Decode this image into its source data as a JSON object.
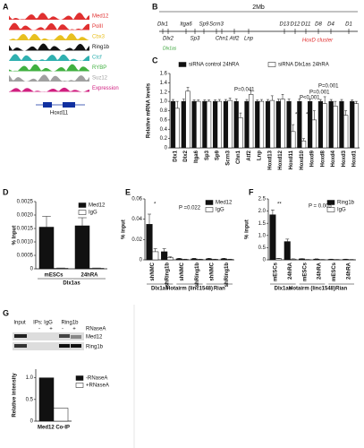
{
  "panel_a": {
    "panel": "A",
    "tracks": [
      {
        "name": "Med12",
        "color": "#e03030"
      },
      {
        "name": "PolII",
        "color": "#e03030"
      },
      {
        "name": "Cbx3",
        "color": "#e8c020"
      },
      {
        "name": "Ring1b",
        "color": "#111111"
      },
      {
        "name": "Ctcf",
        "color": "#30b0b0"
      },
      {
        "name": "RYBP",
        "color": "#40b040"
      },
      {
        "name": "Suz12",
        "color": "#a0a0a0"
      },
      {
        "name": "Expression",
        "color": "#d02080"
      }
    ],
    "gene": "Hoxd11"
  },
  "panel_b": {
    "panel": "B",
    "scale": "2Mb",
    "genes": [
      "Dlx1",
      "Dlx2",
      "Itga6",
      "Sp3",
      "Sp9",
      "Scrn3",
      "Chn1",
      "Atf2",
      "Lnp",
      "D13",
      "D12",
      "D11",
      "D8",
      "D4",
      "D1"
    ],
    "cluster": "HoxD cluster",
    "lncrna": "Dlx1as"
  },
  "panel_g_blot": {
    "headers": [
      "Input",
      "IPs: IgG",
      "Ring1b"
    ],
    "treatment": "RNaseA",
    "signs": [
      "-",
      "+",
      "-",
      "+"
    ],
    "bands": [
      "Med12",
      "Ring1b"
    ]
  },
  "chart_data": [
    {
      "panel": "C",
      "type": "bar",
      "ylabel": "Relative mRNA levels",
      "categories": [
        "Dlx1",
        "Dlx2",
        "Itga6",
        "Sp3",
        "Sp9",
        "Scrn3",
        "Chn1",
        "Atf2",
        "Lnp",
        "Hoxd13",
        "Hoxd12",
        "Hoxd11",
        "Hoxd10",
        "Hoxd9",
        "Hoxd8",
        "Hoxd4",
        "Hoxd3",
        "Hoxd1"
      ],
      "series": [
        {
          "name": "siRNA control 24hRA",
          "color": "#111111",
          "values": [
            1,
            1,
            1,
            1,
            1,
            1,
            1,
            1,
            1,
            1,
            1,
            1,
            1,
            1,
            1,
            1,
            1,
            1
          ],
          "errors": [
            0.04,
            0.05,
            0.03,
            0.03,
            0.03,
            0.04,
            0.05,
            0.04,
            0.03,
            0.04,
            0.05,
            0.05,
            0.05,
            0.05,
            0.04,
            0.04,
            0.04,
            0.03
          ]
        },
        {
          "name": "siRNA Dlx1as 24hRA",
          "color": "#ffffff",
          "values": [
            0.85,
            1.22,
            1.0,
            1.0,
            1.0,
            1.02,
            0.65,
            1.15,
            1.0,
            1.02,
            1.05,
            0.35,
            0.15,
            0.6,
            0.95,
            0.9,
            0.7,
            0.95
          ],
          "errors": [
            0.15,
            0.08,
            0.03,
            0.03,
            0.04,
            0.05,
            0.1,
            0.08,
            0.04,
            0.1,
            0.1,
            0.15,
            0.05,
            0.2,
            0.15,
            0.1,
            0.1,
            0.05
          ]
        }
      ],
      "ylim": [
        0,
        1.6
      ],
      "yticks": [
        0,
        0.2,
        0.4,
        0.6,
        0.8,
        {
          "value": 1,
          "label": "1.0"
        },
        1.2,
        1.4,
        1.6
      ],
      "legend": "top",
      "annotations": [
        "P=0.041",
        "P<0.001",
        "P=0.001",
        "P=0.001",
        "***",
        "**"
      ]
    },
    {
      "panel": "D",
      "type": "bar",
      "ylabel": "% Input",
      "categories": [
        "mESCs",
        "24hRA"
      ],
      "groups": [
        "Dlx1as"
      ],
      "series": [
        {
          "name": "Med12",
          "color": "#111111",
          "values": [
            0.00155,
            0.0016
          ],
          "errors": [
            0.0004,
            0.0003
          ]
        },
        {
          "name": "IgG",
          "color": "#ffffff",
          "values": [
            2e-05,
            2e-05
          ],
          "errors": [
            1e-05,
            1e-05
          ]
        }
      ],
      "ylim": [
        0,
        0.0025
      ],
      "yticks": [
        0,
        0.0005,
        {
          "value": 0.001,
          "label": "0.0010"
        },
        0.0015,
        {
          "value": 0.002,
          "label": "0.0020"
        },
        0.0025
      ],
      "legend": "top-right",
      "annotations": []
    },
    {
      "panel": "E",
      "type": "bar",
      "ylabel": "% input",
      "categories": [
        "shNMC",
        "shRing1b",
        "shNMC",
        "shRing1b",
        "shNMC",
        "shRing1b"
      ],
      "groups": [
        "Dlx1as",
        "Hotairm (linc1548)",
        "Rian"
      ],
      "series": [
        {
          "name": "Med12",
          "color": "#111111",
          "values": [
            0.035,
            0.008,
            0.001,
            0.001,
            0.001,
            0.001
          ],
          "errors": [
            0.01,
            0.003,
            0.0005,
            0.0005,
            0.0005,
            0.0005
          ]
        },
        {
          "name": "IgG",
          "color": "#ffffff",
          "values": [
            0.008,
            0.002,
            0.0005,
            0.0005,
            0.0005,
            0.0005
          ],
          "errors": [
            0.003,
            0.001,
            0.0002,
            0.0002,
            0.0002,
            0.0002
          ]
        }
      ],
      "ylim": [
        0,
        0.06
      ],
      "yticks": [
        0,
        0.02,
        0.04,
        0.06
      ],
      "legend": "top-right",
      "annotations": [
        "*",
        "P =0.022"
      ]
    },
    {
      "panel": "F",
      "type": "bar",
      "ylabel": "% input",
      "categories": [
        "mESCs",
        "24hRA",
        "mESCs",
        "24hRA",
        "mESCs",
        "24hRA"
      ],
      "groups": [
        "Dlx1as",
        "Hotairm (linc1548)",
        "Rian"
      ],
      "series": [
        {
          "name": "Ring1b",
          "color": "#111111",
          "values": [
            1.85,
            0.75,
            0.04,
            0.03,
            0.02,
            0.02
          ],
          "errors": [
            0.2,
            0.1,
            0.01,
            0.01,
            0.01,
            0.01
          ]
        },
        {
          "name": "IgG",
          "color": "#ffffff",
          "values": [
            0.05,
            0.03,
            0.01,
            0.01,
            0.01,
            0.01
          ],
          "errors": [
            0.01,
            0.01,
            0.005,
            0.005,
            0.005,
            0.005
          ]
        }
      ],
      "ylim": [
        0,
        2.5
      ],
      "yticks": [
        0,
        0.5,
        {
          "value": 1,
          "label": "1.0"
        },
        1.5,
        {
          "value": 2,
          "label": "2.0"
        },
        2.5
      ],
      "legend": "top-right",
      "annotations": [
        "**",
        "P = 0.005"
      ]
    },
    {
      "panel": "G",
      "type": "bar",
      "ylabel": "Relative intensity",
      "categories": [
        "Med12 Co-IP"
      ],
      "series": [
        {
          "name": "-RNaseA",
          "color": "#111111",
          "values": [
            1
          ]
        },
        {
          "name": "+RNaseA",
          "color": "#ffffff",
          "values": [
            0.3
          ]
        }
      ],
      "ylim": [
        0,
        1.2
      ],
      "yticks": [
        0,
        0.5,
        {
          "value": 1,
          "label": "1.0"
        }
      ],
      "legend": "right",
      "annotations": []
    }
  ]
}
